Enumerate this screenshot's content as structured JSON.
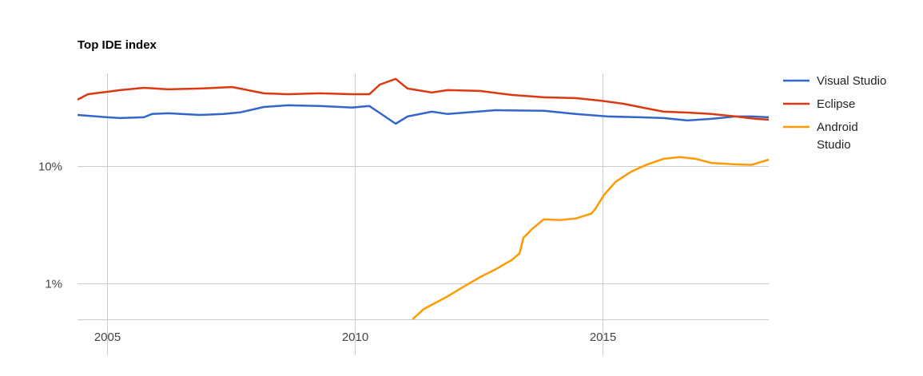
{
  "chart_data": {
    "type": "line",
    "title": "Top IDE index",
    "xlabel": "",
    "ylabel": "",
    "yscale": "log",
    "xlim": [
      2004.4,
      2018.35
    ],
    "ylim": [
      0.49,
      61.5
    ],
    "x_ticks": [
      {
        "value": 2005,
        "label": "2005"
      },
      {
        "value": 2010,
        "label": "2010"
      },
      {
        "value": 2015,
        "label": "2015"
      }
    ],
    "y_ticks": [
      {
        "value": 10,
        "label": "10%"
      },
      {
        "value": 1,
        "label": "1%"
      }
    ],
    "grid": true,
    "legend_position": "right",
    "series": [
      {
        "name": "Visual Studio",
        "color": "#3366cc",
        "x": [
          2004.4,
          2005,
          2005.26,
          2005.74,
          2005.9,
          2006.23,
          2006.87,
          2007.35,
          2007.68,
          2008.16,
          2008.65,
          2009.29,
          2009.94,
          2010.29,
          2010.58,
          2010.82,
          2011.06,
          2011.55,
          2011.87,
          2012.84,
          2013.81,
          2014.45,
          2015.1,
          2015.74,
          2016.23,
          2016.71,
          2017.19,
          2017.68,
          2018,
          2018.35
        ],
        "y": [
          27.2,
          26.0,
          25.6,
          26.0,
          27.7,
          28.1,
          27.2,
          27.7,
          28.6,
          31.8,
          32.9,
          32.4,
          31.4,
          32.4,
          26.8,
          22.9,
          26.4,
          29.0,
          27.7,
          29.9,
          29.5,
          27.7,
          26.4,
          26.0,
          25.6,
          24.4,
          25.2,
          26.4,
          26.4,
          26.0
        ]
      },
      {
        "name": "Eclipse",
        "color": "#dc3912",
        "x": [
          2004.4,
          2004.61,
          2005,
          2005.26,
          2005.74,
          2006.23,
          2006.87,
          2007.52,
          2008.16,
          2008.65,
          2009.29,
          2009.94,
          2010.29,
          2010.5,
          2010.82,
          2011.06,
          2011.55,
          2011.87,
          2012.52,
          2013.16,
          2013.81,
          2014.45,
          2014.94,
          2015.42,
          2015.74,
          2016.23,
          2016.71,
          2017.19,
          2017.68,
          2018.08,
          2018.35
        ],
        "y": [
          36.7,
          40.9,
          42.9,
          44.3,
          46.4,
          45.0,
          45.7,
          47.1,
          41.6,
          40.9,
          41.6,
          40.9,
          40.9,
          49.4,
          55.3,
          45.7,
          42.3,
          44.3,
          43.6,
          40.3,
          38.5,
          37.9,
          36.1,
          33.9,
          31.8,
          29.0,
          28.5,
          27.7,
          26.4,
          25.2,
          24.8
        ]
      },
      {
        "name": "Android Studio",
        "color": "#ff9900",
        "x": [
          2011.16,
          2011.39,
          2011.63,
          2011.87,
          2012.19,
          2012.52,
          2012.84,
          2013.16,
          2013.32,
          2013.4,
          2013.56,
          2013.81,
          2014.13,
          2014.45,
          2014.77,
          2014.85,
          2015.02,
          2015.26,
          2015.58,
          2015.9,
          2016.23,
          2016.55,
          2016.87,
          2017.19,
          2017.68,
          2018,
          2018.35
        ],
        "y": [
          0.49,
          0.6,
          0.68,
          0.77,
          0.93,
          1.12,
          1.31,
          1.57,
          1.79,
          2.44,
          2.86,
          3.5,
          3.45,
          3.55,
          3.91,
          4.29,
          5.6,
          7.31,
          8.96,
          10.3,
          11.5,
          11.9,
          11.5,
          10.6,
          10.3,
          10.2,
          11.3
        ]
      }
    ]
  }
}
